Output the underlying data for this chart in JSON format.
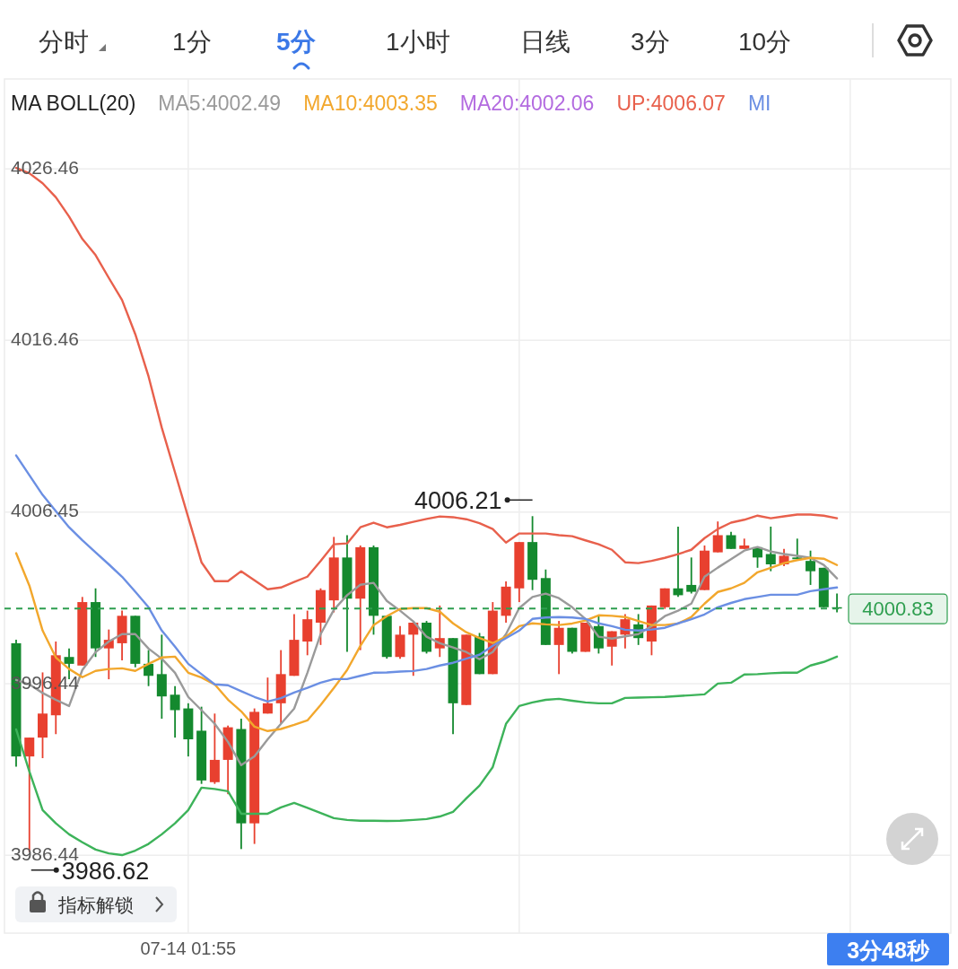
{
  "chart_data": {
    "type": "candlestick",
    "legend_title": "MA BOLL(20)",
    "legend": "top",
    "categories": [
      null,
      null,
      null,
      null,
      null,
      null,
      null,
      null,
      null,
      null,
      null,
      null,
      null,
      "07-14 01:55",
      null,
      null,
      null,
      null,
      null,
      null,
      null,
      null,
      null,
      null,
      null,
      null,
      null,
      null,
      null,
      null,
      null,
      null,
      null,
      null,
      null,
      null,
      null,
      null,
      null,
      null,
      null,
      null,
      null,
      null,
      null,
      null,
      null,
      null,
      null,
      null,
      null,
      null,
      null,
      null,
      null,
      null,
      null,
      null,
      null,
      null,
      null,
      null,
      null
    ],
    "ohlc": [
      [
        3998.8,
        3999.0,
        3991.6,
        3992.2
      ],
      [
        3992.2,
        3993.3,
        3986.62,
        3993.3
      ],
      [
        3993.3,
        3997.1,
        3992.1,
        3994.7
      ],
      [
        3994.6,
        3998.9,
        3993.5,
        3998.1
      ],
      [
        3998.0,
        3998.5,
        3996.7,
        3997.6
      ],
      [
        3997.5,
        4001.5,
        3997.5,
        4001.2
      ],
      [
        4001.2,
        4002.0,
        3998.0,
        3998.5
      ],
      [
        3998.5,
        3999.6,
        3996.7,
        3999.0
      ],
      [
        3998.8,
        4000.7,
        3997.8,
        4000.4
      ],
      [
        4000.4,
        4000.4,
        3997.4,
        3997.6
      ],
      [
        3997.6,
        3998.4,
        3996.3,
        3996.9
      ],
      [
        3997.0,
        3999.3,
        3994.4,
        3995.7
      ],
      [
        3995.8,
        3996.3,
        3993.3,
        3994.9
      ],
      [
        3995.0,
        3995.3,
        3992.2,
        3993.2
      ],
      [
        3993.7,
        3995.1,
        3990.6,
        3990.8
      ],
      [
        3990.7,
        3994.7,
        3990.6,
        3992.0
      ],
      [
        3992.0,
        3994.0,
        3990.0,
        3993.9
      ],
      [
        3993.8,
        3994.4,
        3986.8,
        3988.3
      ],
      [
        3988.3,
        3995.0,
        3987.1,
        3994.8
      ],
      [
        3994.7,
        3996.8,
        3994.7,
        3995.3
      ],
      [
        3995.3,
        3998.4,
        3994.1,
        3997.0
      ],
      [
        3996.9,
        4000.5,
        3996.9,
        3999.0
      ],
      [
        3998.9,
        4000.7,
        3998.1,
        4000.2
      ],
      [
        4000.0,
        4002.0,
        3998.7,
        4001.9
      ],
      [
        4001.3,
        4005.0,
        4000.6,
        4003.8
      ],
      [
        4003.8,
        4005.1,
        3998.3,
        4001.4
      ],
      [
        4001.4,
        4004.5,
        3998.4,
        4004.4
      ],
      [
        4004.4,
        4004.5,
        3999.3,
        4000.4
      ],
      [
        4000.4,
        4000.4,
        3997.9,
        3998.0
      ],
      [
        3998.0,
        3999.8,
        3997.9,
        3999.3
      ],
      [
        3999.3,
        4000.0,
        3996.9,
        4000.0
      ],
      [
        4000.0,
        4000.1,
        3998.2,
        3998.3
      ],
      [
        3998.5,
        4001.0,
        3998.0,
        3999.1
      ],
      [
        3999.1,
        3999.1,
        3993.5,
        3995.3
      ],
      [
        3995.2,
        3999.3,
        3995.2,
        3999.3
      ],
      [
        3999.2,
        3999.4,
        3997.0,
        3997.0
      ],
      [
        3997.0,
        4001.2,
        3997.0,
        4000.7
      ],
      [
        4000.4,
        4002.4,
        4000.0,
        4002.1
      ],
      [
        4002.0,
        4004.7,
        4001.2,
        4004.7
      ],
      [
        4004.7,
        4006.21,
        4001.9,
        4002.5
      ],
      [
        4002.6,
        4003.1,
        3998.7,
        3998.7
      ],
      [
        3998.7,
        4000.1,
        3997.0,
        3999.7
      ],
      [
        3999.7,
        3999.7,
        3998.2,
        3998.3
      ],
      [
        3998.3,
        4000.0,
        3998.3,
        4000.0
      ],
      [
        3999.8,
        4000.4,
        3998.2,
        3998.5
      ],
      [
        3998.6,
        3999.5,
        3997.5,
        3999.5
      ],
      [
        3999.3,
        4000.5,
        3998.5,
        4000.2
      ],
      [
        3999.9,
        4000.5,
        3998.7,
        3999.1
      ],
      [
        3998.9,
        4001.0,
        3998.1,
        4001.0
      ],
      [
        4000.9,
        4002.0,
        4000.8,
        4002.0
      ],
      [
        4002.0,
        4005.6,
        4001.5,
        4001.6
      ],
      [
        4002.2,
        4003.8,
        4001.7,
        4001.8
      ],
      [
        4001.9,
        4004.5,
        4001.9,
        4004.2
      ],
      [
        4004.1,
        4005.9,
        4004.1,
        4005.1
      ],
      [
        4005.1,
        4005.3,
        4004.3,
        4004.3
      ],
      [
        4004.3,
        4004.9,
        4004.3,
        4004.5
      ],
      [
        4004.4,
        4004.4,
        4003.2,
        4003.8
      ],
      [
        4004.0,
        4005.6,
        4003.0,
        4003.4
      ],
      [
        4003.4,
        4004.3,
        4003.3,
        4003.9
      ],
      [
        4003.8,
        4004.9,
        4003.7,
        4003.7
      ],
      [
        4003.6,
        4004.2,
        4002.2,
        4003.0
      ],
      [
        4003.2,
        4003.2,
        4000.9,
        4000.9
      ],
      [
        4000.9,
        4001.7,
        4000.6,
        4000.83
      ]
    ],
    "colors": [
      "#14892e",
      "#e8402f",
      "#e8402f",
      "#e8402f",
      "#14892e",
      "#e8402f",
      "#14892e",
      "#e8402f",
      "#e8402f",
      "#14892e",
      "#14892e",
      "#14892e",
      "#14892e",
      "#14892e",
      "#14892e",
      "#e8402f",
      "#e8402f",
      "#14892e",
      "#e8402f",
      "#e8402f",
      "#e8402f",
      "#e8402f",
      "#e8402f",
      "#e8402f",
      "#e8402f",
      "#14892e",
      "#e8402f",
      "#14892e",
      "#14892e",
      "#e8402f",
      "#e8402f",
      "#14892e",
      "#e8402f",
      "#14892e",
      "#e8402f",
      "#14892e",
      "#e8402f",
      "#e8402f",
      "#e8402f",
      "#14892e",
      "#14892e",
      "#e8402f",
      "#14892e",
      "#e8402f",
      "#14892e",
      "#e8402f",
      "#e8402f",
      "#14892e",
      "#e8402f",
      "#e8402f",
      "#14892e",
      "#14892e",
      "#e8402f",
      "#e8402f",
      "#14892e",
      "#e8402f",
      "#14892e",
      "#14892e",
      "#e8402f",
      "#14892e",
      "#14892e",
      "#14892e",
      "#14892e"
    ],
    "series": [
      {
        "name": "MA5:4002.49",
        "type": "line",
        "color": "#9a9a9a",
        "values": [
          3996.66,
          3996.4,
          3995.9,
          3995.5,
          3995.14,
          3997.24,
          3998.28,
          3998.9,
          3999.33,
          3999.33,
          3998.49,
          3997.9,
          3997.08,
          3995.67,
          3994.9,
          3994.1,
          3993.05,
          3991.69,
          3992.21,
          3993.2,
          3994.1,
          3994.99,
          3997.08,
          3999.33,
          4000.75,
          4001.6,
          4002.21,
          4002.32,
          4001.27,
          4000.7,
          4000.07,
          3999.18,
          3998.8,
          3998.55,
          3998.29,
          3997.87,
          3998.29,
          3999.33,
          4000.85,
          4001.5,
          4001.69,
          4001.43,
          4000.9,
          4000.22,
          3999.18,
          3999.07,
          3999.2,
          3999.33,
          3999.8,
          4000.38,
          4000.7,
          4001.11,
          4002.68,
          4003.21,
          4003.7,
          4004.2,
          4004.41,
          4004.15,
          4004.0,
          4003.9,
          4003.78,
          4003.37,
          4002.58
        ]
      },
      {
        "name": "MA10:4003.35",
        "type": "line",
        "color": "#f2a72c",
        "values": [
          4004.05,
          4002.16,
          3999.54,
          3997.97,
          3997.3,
          3996.82,
          3997.19,
          3997.3,
          3997.34,
          3997.19,
          3997.6,
          3997.97,
          3998.02,
          3997.08,
          3996.8,
          3996.4,
          3995.51,
          3994.83,
          3993.94,
          3993.68,
          3993.8,
          3994.04,
          3994.3,
          3995.2,
          3996.19,
          3997.24,
          3998.65,
          3999.86,
          4000.38,
          4000.8,
          4000.85,
          4000.85,
          4000.64,
          3999.96,
          3999.44,
          3999.1,
          3998.81,
          3999.18,
          3999.8,
          3999.96,
          3999.9,
          3999.86,
          3999.95,
          4000.12,
          4000.43,
          4000.4,
          4000.33,
          4000.1,
          3999.86,
          3999.86,
          3999.95,
          4000.33,
          4001.11,
          4001.79,
          4002.0,
          4002.32,
          4002.94,
          4003.2,
          4003.47,
          4003.65,
          4003.78,
          4003.73,
          4003.36
        ]
      },
      {
        "name": "UP:4006.07",
        "type": "line",
        "color": "#e8604c",
        "values": [
          4026.51,
          4026.2,
          4025.62,
          4024.8,
          4023.68,
          4022.37,
          4021.43,
          4020.1,
          4018.81,
          4016.82,
          4014.36,
          4011.37,
          4008.76,
          4006.14,
          4003.52,
          4002.42,
          4002.42,
          4003.0,
          4002.47,
          4001.95,
          4002.05,
          4002.37,
          4002.68,
          4003.6,
          4004.57,
          4004.62,
          4005.56,
          4005.83,
          4005.56,
          4005.7,
          4005.88,
          4006.05,
          4006.19,
          4006.15,
          4006.03,
          4005.8,
          4005.46,
          4004.67,
          4005.2,
          4005.2,
          4005.2,
          4005.1,
          4005.04,
          4004.8,
          4004.57,
          4004.25,
          4003.52,
          4003.47,
          4003.6,
          4003.78,
          4004.0,
          4004.25,
          4004.93,
          4005.46,
          4005.83,
          4006.0,
          4006.24,
          4006.09,
          4006.2,
          4006.3,
          4006.3,
          4006.24,
          4006.09
        ]
      },
      {
        "name": "MI",
        "type": "line",
        "color": "#6b8fe3",
        "values": [
          4009.75,
          4008.6,
          4007.45,
          4006.5,
          4005.56,
          4004.8,
          4004.1,
          4003.4,
          4002.68,
          4001.8,
          4000.9,
          3999.54,
          3998.6,
          3997.6,
          3997.0,
          3996.4,
          3996.35,
          3996.0,
          3995.67,
          3995.4,
          3995.6,
          3995.93,
          3996.2,
          3996.5,
          3996.71,
          3996.71,
          3996.9,
          3997.08,
          3997.1,
          3997.15,
          3997.18,
          3997.3,
          3997.5,
          3997.66,
          3997.9,
          3998.13,
          3998.65,
          3999.1,
          3999.54,
          4000.22,
          4000.3,
          4000.33,
          4000.3,
          4000.22,
          3999.96,
          3999.8,
          3999.59,
          3999.54,
          3999.6,
          3999.7,
          3999.96,
          4000.2,
          4000.48,
          4000.9,
          4001.15,
          4001.37,
          4001.5,
          4001.63,
          4001.63,
          4001.63,
          4001.84,
          4001.95,
          4002.05
        ]
      },
      {
        "type": "line",
        "color": "#3db35a",
        "values": [
          3993.78,
          3991.32,
          3989.07,
          3988.3,
          3987.66,
          3987.2,
          3986.77,
          3986.55,
          3986.45,
          3986.71,
          3987.1,
          3987.66,
          3988.3,
          3989.07,
          3990.38,
          3990.3,
          3990.17,
          3988.86,
          3988.86,
          3988.86,
          3989.23,
          3989.49,
          3989.2,
          3988.9,
          3988.6,
          3988.5,
          3988.45,
          3988.45,
          3988.44,
          3988.45,
          3988.5,
          3988.55,
          3988.7,
          3988.97,
          3989.75,
          3990.5,
          3991.58,
          3994.1,
          3995.14,
          3995.35,
          3995.5,
          3995.56,
          3995.45,
          3995.35,
          3995.3,
          3995.3,
          3995.61,
          3995.63,
          3995.65,
          3995.67,
          3995.72,
          3995.77,
          3995.82,
          3996.45,
          3996.5,
          3996.98,
          3997.0,
          3997.05,
          3997.08,
          3997.08,
          3997.5,
          3997.71,
          3998.02
        ]
      }
    ],
    "ylim": [
      3981.9,
      4031.7
    ],
    "yticks": [
      4026.46,
      4016.46,
      4006.45,
      3996.44,
      3986.44
    ],
    "grid": true,
    "ref_lines": [
      {
        "axis": "y",
        "value": 4000.83,
        "label": "4000.83",
        "color": "#2e9e4f",
        "line_style": "dashed"
      }
    ],
    "annotations": [
      "MA20:4002.06",
      {
        "text": "4006.21",
        "y": 4006.21
      },
      {
        "text": "3986.62",
        "y": 3986.62
      },
      "指标解锁",
      "3分48秒",
      "分时",
      "1分",
      "5分",
      "1小时",
      "日线",
      "3分",
      "10分"
    ]
  }
}
